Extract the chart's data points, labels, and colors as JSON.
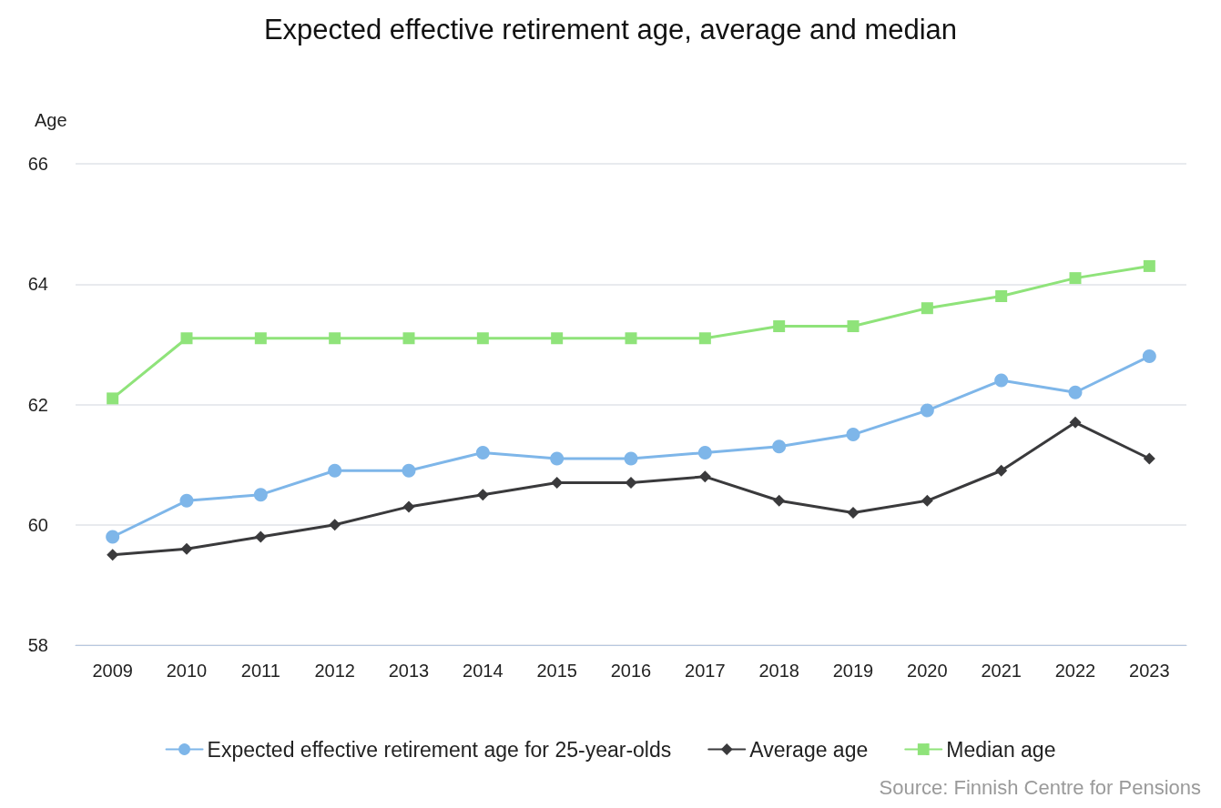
{
  "chart_data": {
    "type": "line",
    "title": "Expected effective retirement age, average and median",
    "ylabel": "Age",
    "categories": [
      "2009",
      "2010",
      "2011",
      "2012",
      "2013",
      "2014",
      "2015",
      "2016",
      "2017",
      "2018",
      "2019",
      "2020",
      "2021",
      "2022",
      "2023"
    ],
    "series": [
      {
        "name": "Expected effective retirement age for 25-year-olds",
        "color": "#7eb6e9",
        "marker": "circle",
        "values": [
          59.8,
          60.4,
          60.5,
          60.9,
          60.9,
          61.2,
          61.1,
          61.1,
          61.2,
          61.3,
          61.5,
          61.9,
          62.4,
          62.2,
          62.8
        ]
      },
      {
        "name": "Average age",
        "color": "#3a3a3c",
        "marker": "diamond",
        "values": [
          59.5,
          59.6,
          59.8,
          60.0,
          60.3,
          60.5,
          60.7,
          60.7,
          60.8,
          60.4,
          60.2,
          60.4,
          60.9,
          61.7,
          61.1
        ]
      },
      {
        "name": "Median age",
        "color": "#8fe37a",
        "marker": "square",
        "values": [
          62.1,
          63.1,
          63.1,
          63.1,
          63.1,
          63.1,
          63.1,
          63.1,
          63.1,
          63.3,
          63.3,
          63.6,
          63.8,
          64.1,
          64.3
        ]
      }
    ],
    "ylim": [
      58,
      66
    ],
    "yticks": [
      58,
      60,
      62,
      64,
      66
    ],
    "grid": "y",
    "legend": "bottom",
    "line_style": "solid",
    "annotations": [
      "Source: Finnish Centre for Pensions"
    ]
  }
}
